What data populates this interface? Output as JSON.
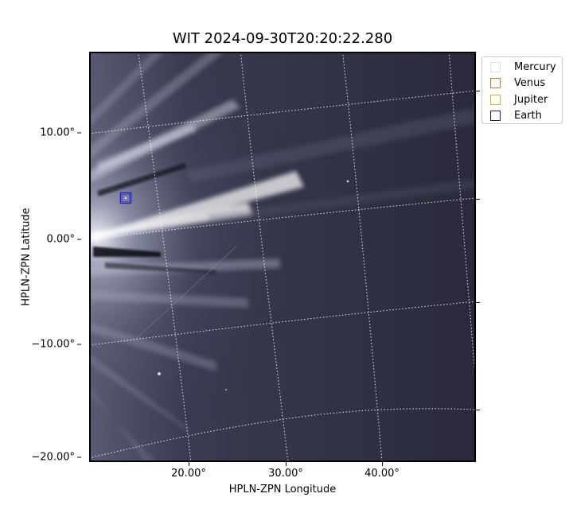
{
  "title": "WIT 2024-09-30T20:20:22.280",
  "xlabel": "HPLN-ZPN Longitude",
  "ylabel": "HPLN-ZPN Latitude",
  "x_ticks": [
    "20.00°",
    "30.00°",
    "40.00°"
  ],
  "y_ticks": [
    "10.00°",
    "0.00°",
    "−10.00°",
    "−20.00°"
  ],
  "legend": [
    {
      "name": "Mercury",
      "color": "#e0e0e0"
    },
    {
      "name": "Venus",
      "color": "#d4782a"
    },
    {
      "name": "Jupiter",
      "color": "#e0b020"
    },
    {
      "name": "Earth",
      "color": "#1a1a7a"
    }
  ],
  "colors": {
    "background_dark": "#2b2b3d",
    "streamer_light": "#eef0f8",
    "grid": "#ffffff",
    "earth_marker": "#2222cc"
  }
}
